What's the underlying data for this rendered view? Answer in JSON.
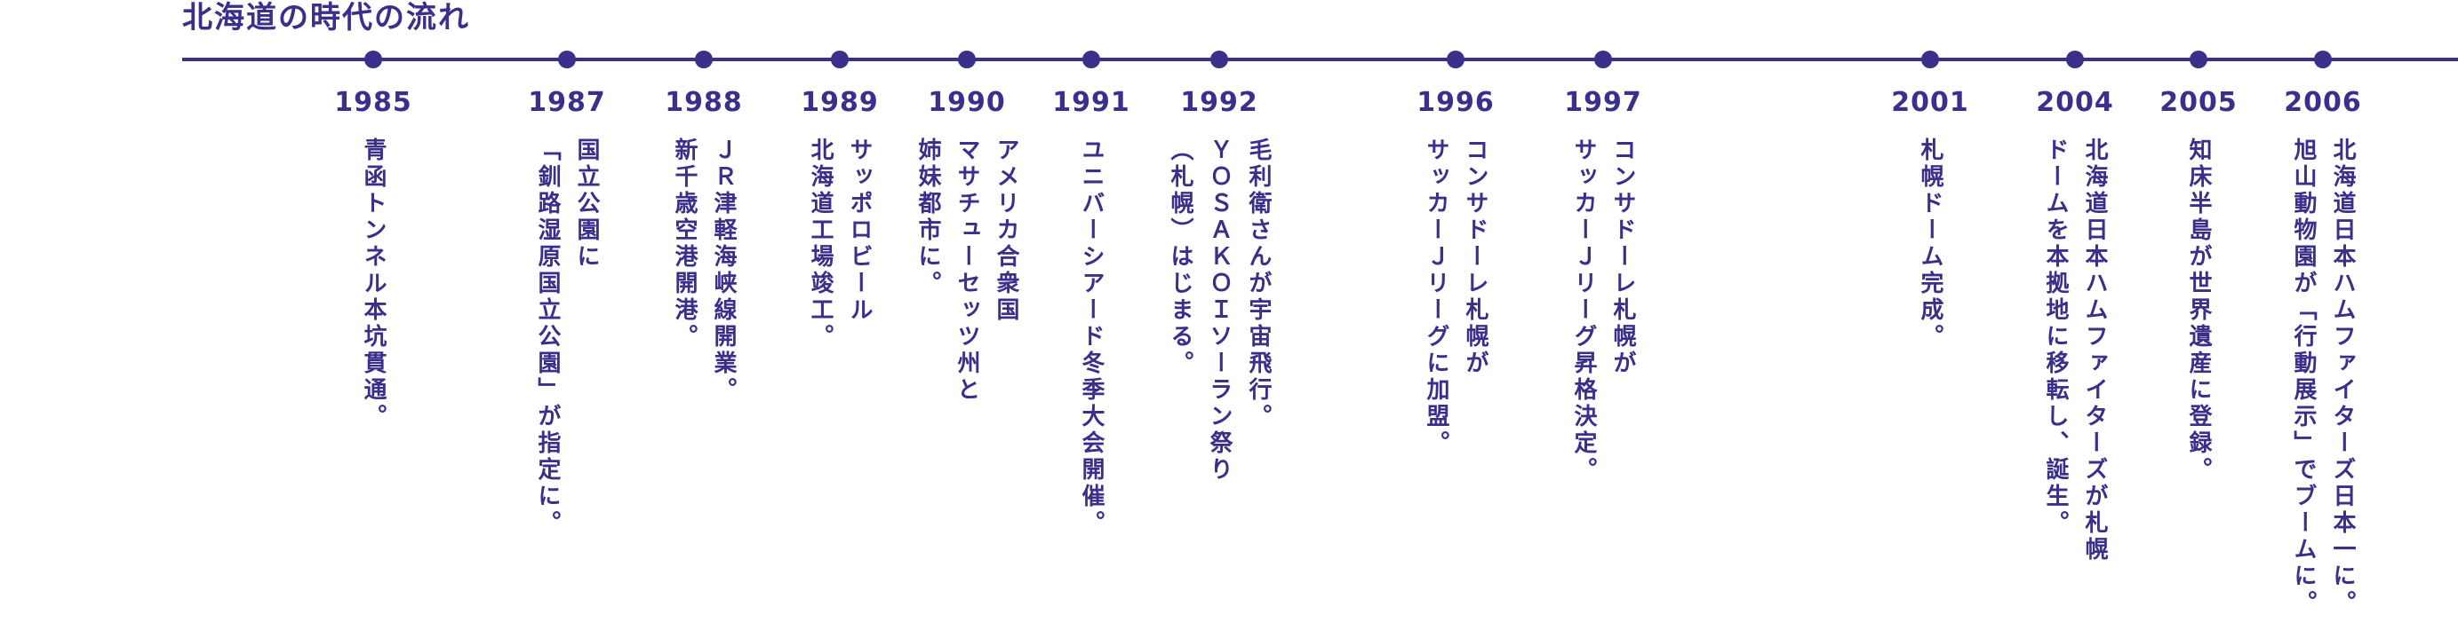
{
  "title": "北海道の時代の流れ",
  "timeline": {
    "events": [
      {
        "year": "1985",
        "lines": [
          "青函トンネル本坑貫通。"
        ]
      },
      {
        "year": "1987",
        "lines": [
          "国立公園に",
          "「釧路湿原国立公園」が指定に。"
        ]
      },
      {
        "year": "1988",
        "lines": [
          "ＪＲ津軽海峡線開業。",
          "新千歳空港開港。"
        ]
      },
      {
        "year": "1989",
        "lines": [
          "サッポロビール",
          "北海道工場竣工。"
        ]
      },
      {
        "year": "1990",
        "lines": [
          "アメリカ合衆国",
          "マサチューセッツ州と",
          "姉妹都市に。"
        ]
      },
      {
        "year": "1991",
        "lines": [
          "ユニバーシアード冬季大会開催。"
        ]
      },
      {
        "year": "1992",
        "lines": [
          "毛利衛さんが宇宙飛行。",
          "ＹＯＳＡＫＯＩソーラン祭り",
          "（札幌）はじまる。"
        ]
      },
      {
        "year": "1996",
        "lines": [
          "コンサドーレ札幌が",
          "サッカーＪリーグに加盟。"
        ]
      },
      {
        "year": "1997",
        "lines": [
          "コンサドーレ札幌が",
          "サッカーＪリーグ昇格決定。"
        ]
      },
      {
        "year": "2001",
        "lines": [
          "札幌ドーム完成。"
        ]
      },
      {
        "year": "2004",
        "lines": [
          "北海道日本ハムファイターズが札幌",
          "ドームを本拠地に移転し、誕生。"
        ]
      },
      {
        "year": "2005",
        "lines": [
          "知床半島が世界遺産に登録。"
        ]
      },
      {
        "year": "2006",
        "lines": [
          "北海道日本ハムファイターズ日本一に。",
          "旭山動物園が「行動展示」でブームに。"
        ]
      }
    ]
  }
}
